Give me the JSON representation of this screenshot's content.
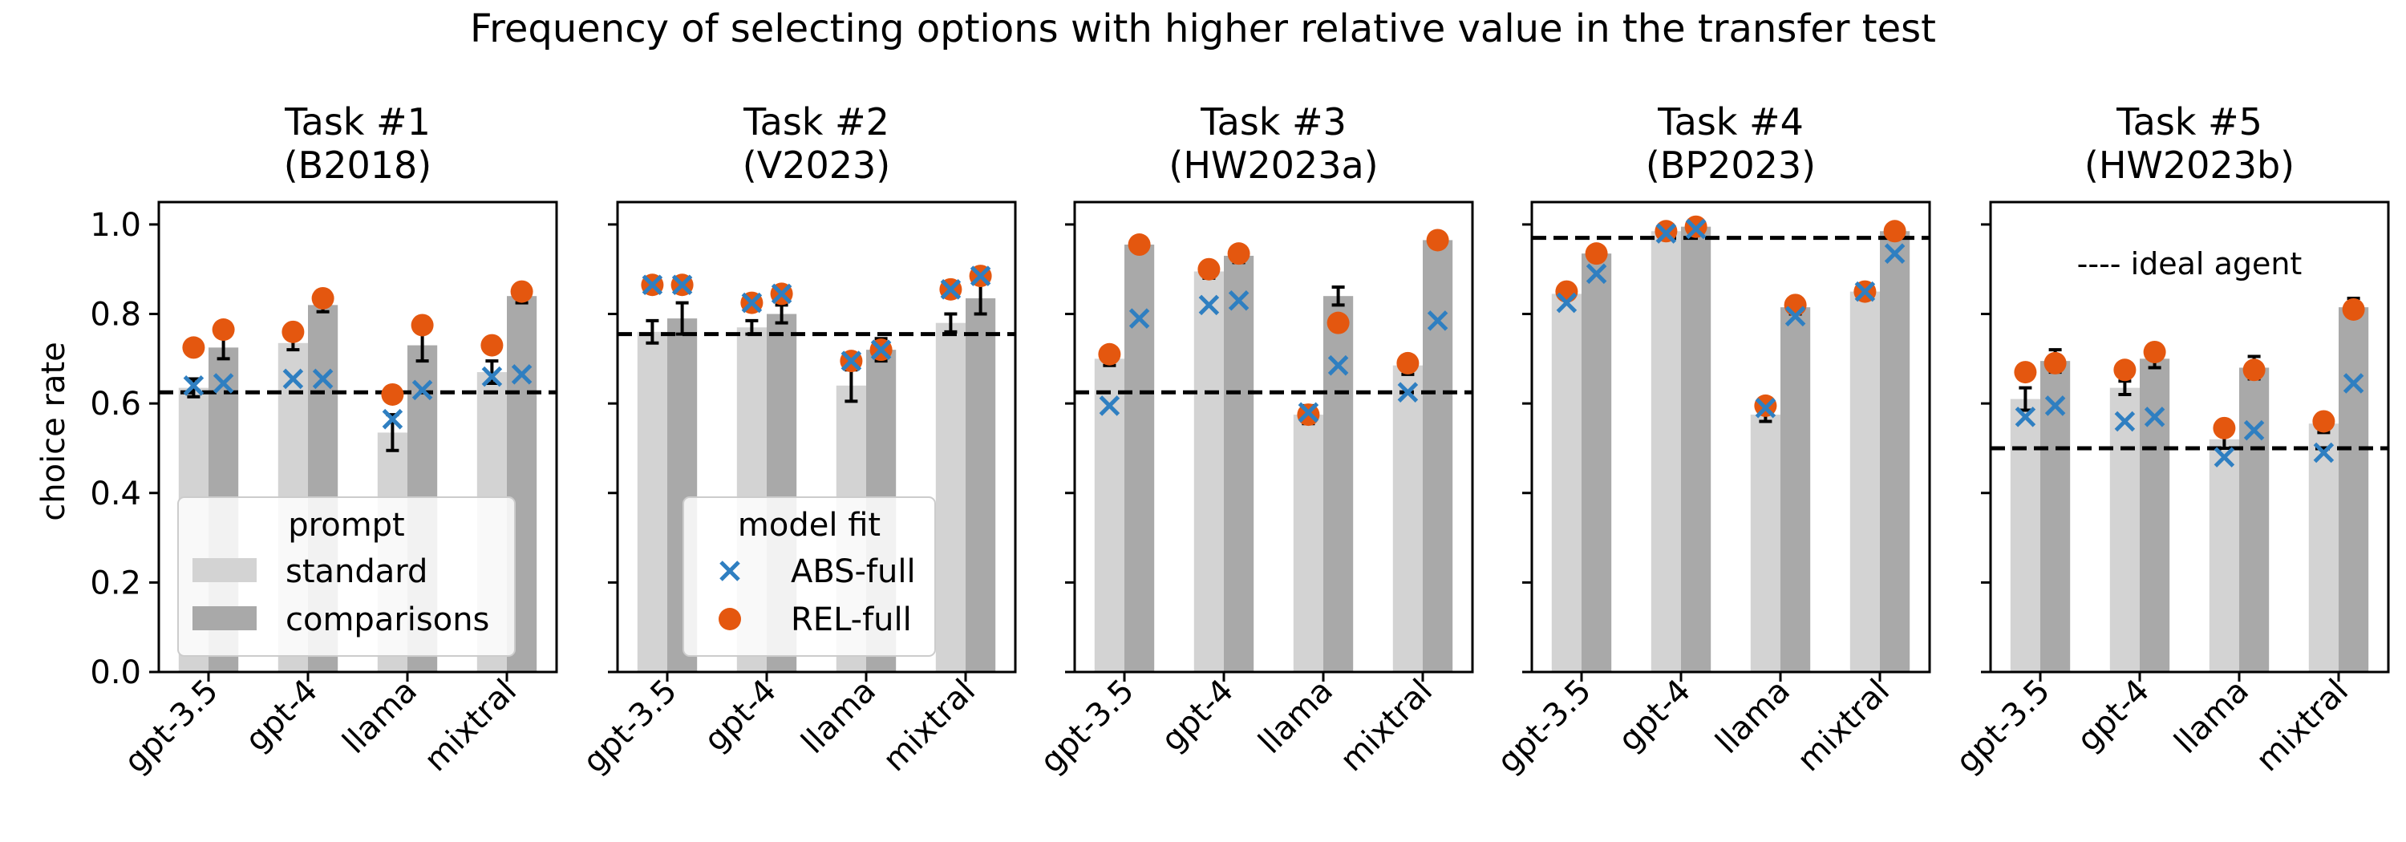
{
  "chart_data": {
    "title": "Frequency of selecting options with higher relative value in the transfer test",
    "type": "bar",
    "ylabel": "choice rate",
    "ylim": [
      0,
      1.05
    ],
    "yticks": [
      "0.0",
      "0.2",
      "0.4",
      "0.6",
      "0.8",
      "1.0"
    ],
    "categories": [
      "gpt-3.5",
      "gpt-4",
      "llama",
      "mixtral"
    ],
    "colors": {
      "standard": "#d3d3d3",
      "comparisons": "#a9a9a9",
      "abs": "#2f7fc1",
      "rel": "#e4570f",
      "ideal": "#000000"
    },
    "legend_prompt": {
      "title": "prompt",
      "standard": "standard",
      "comparisons": "comparisons"
    },
    "legend_model": {
      "title": "model fit",
      "abs": "ABS-full",
      "rel": "REL-full"
    },
    "ideal_label": "---- ideal agent",
    "panels": [
      {
        "title_line1": "Task #1",
        "title_line2": "(B2018)",
        "ideal": 0.625,
        "standard": [
          0.635,
          0.735,
          0.535,
          0.67
        ],
        "standard_err": [
          0.02,
          0.015,
          0.04,
          0.025
        ],
        "comparisons": [
          0.725,
          0.82,
          0.73,
          0.84
        ],
        "comparisons_err": [
          0.025,
          0.015,
          0.035,
          0.015
        ],
        "abs_standard": [
          0.64,
          0.655,
          0.565,
          0.66
        ],
        "abs_comparisons": [
          0.645,
          0.655,
          0.63,
          0.665
        ],
        "rel_standard": [
          0.725,
          0.76,
          0.62,
          0.73
        ],
        "rel_comparisons": [
          0.765,
          0.835,
          0.775,
          0.85
        ]
      },
      {
        "title_line1": "Task #2",
        "title_line2": "(V2023)",
        "ideal": 0.755,
        "standard": [
          0.76,
          0.77,
          0.64,
          0.78
        ],
        "standard_err": [
          0.025,
          0.015,
          0.035,
          0.02
        ],
        "comparisons": [
          0.79,
          0.8,
          0.72,
          0.835
        ],
        "comparisons_err": [
          0.035,
          0.02,
          0.025,
          0.035
        ],
        "abs_standard": [
          0.865,
          0.825,
          0.695,
          0.855
        ],
        "abs_comparisons": [
          0.865,
          0.845,
          0.72,
          0.885
        ],
        "rel_standard": [
          0.865,
          0.825,
          0.695,
          0.855
        ],
        "rel_comparisons": [
          0.865,
          0.845,
          0.72,
          0.885
        ]
      },
      {
        "title_line1": "Task #3",
        "title_line2": "(HW2023a)",
        "ideal": 0.625,
        "standard": [
          0.7,
          0.895,
          0.575,
          0.685
        ],
        "standard_err": [
          0.015,
          0.015,
          0.02,
          0.02
        ],
        "comparisons": [
          0.955,
          0.93,
          0.84,
          0.965
        ],
        "comparisons_err": [
          0.01,
          0.015,
          0.02,
          0.01
        ],
        "abs_standard": [
          0.595,
          0.82,
          0.58,
          0.625
        ],
        "abs_comparisons": [
          0.79,
          0.83,
          0.685,
          0.785
        ],
        "rel_standard": [
          0.71,
          0.9,
          0.575,
          0.69
        ],
        "rel_comparisons": [
          0.955,
          0.935,
          0.78,
          0.965
        ]
      },
      {
        "title_line1": "Task #4",
        "title_line2": "(BP2023)",
        "ideal": 0.97,
        "standard": [
          0.845,
          0.985,
          0.575,
          0.85
        ],
        "standard_err": [
          0.01,
          0.01,
          0.015,
          0.01
        ],
        "comparisons": [
          0.935,
          0.995,
          0.815,
          0.985
        ],
        "comparisons_err": [
          0.01,
          0.008,
          0.015,
          0.01
        ],
        "abs_standard": [
          0.825,
          0.98,
          0.59,
          0.85
        ],
        "abs_comparisons": [
          0.89,
          0.99,
          0.795,
          0.935
        ],
        "rel_standard": [
          0.85,
          0.985,
          0.595,
          0.85
        ],
        "rel_comparisons": [
          0.935,
          0.995,
          0.82,
          0.985
        ]
      },
      {
        "title_line1": "Task #5",
        "title_line2": "(HW2023b)",
        "ideal": 0.5,
        "standard": [
          0.61,
          0.635,
          0.52,
          0.555
        ],
        "standard_err": [
          0.025,
          0.015,
          0.02,
          0.02
        ],
        "comparisons": [
          0.695,
          0.7,
          0.68,
          0.815
        ],
        "comparisons_err": [
          0.025,
          0.02,
          0.025,
          0.02
        ],
        "abs_standard": [
          0.57,
          0.56,
          0.48,
          0.49
        ],
        "abs_comparisons": [
          0.595,
          0.57,
          0.54,
          0.645
        ],
        "rel_standard": [
          0.67,
          0.675,
          0.545,
          0.56
        ],
        "rel_comparisons": [
          0.69,
          0.715,
          0.675,
          0.81
        ]
      }
    ]
  }
}
